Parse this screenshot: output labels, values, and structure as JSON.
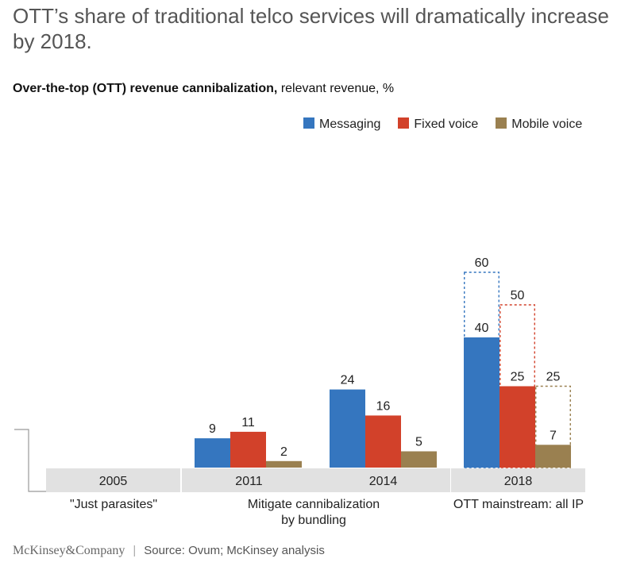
{
  "header": {
    "title": "OTT’s share of traditional telco services will dramatically increase by 2018.",
    "subtitle_bold": "Over-the-top (OTT) revenue cannibalization,",
    "subtitle_rest": " relevant revenue, %"
  },
  "footer": {
    "brand": "McKinsey&Company",
    "source": "Source: Ovum; McKinsey analysis"
  },
  "colors": {
    "messaging": "#3576bf",
    "fixed_voice": "#d2412a",
    "mobile_voice": "#9a8050",
    "category_band": "#e1e1e1",
    "axis": "#999999"
  },
  "chart_data": {
    "type": "bar",
    "title": "OTT’s share of traditional telco services will dramatically increase by 2018.",
    "subtitle": "Over-the-top (OTT) revenue cannibalization, relevant revenue, %",
    "categories": [
      "2005",
      "2011",
      "2014",
      "2018"
    ],
    "phases": [
      "\"Just parasites\"",
      "Mitigate cannibalization by bundling",
      "OTT mainstream: all IP"
    ],
    "phase_lines": [
      [
        "\"Just parasites\""
      ],
      [
        "Mitigate cannibalization",
        "by bundling"
      ],
      [
        "OTT mainstream: all IP"
      ]
    ],
    "ylim": [
      0,
      60
    ],
    "grid": false,
    "legend_position": "top-right",
    "series": [
      {
        "name": "Messaging",
        "color": "#3576bf",
        "values": [
          null,
          9,
          24,
          40
        ],
        "projected_2018": 60
      },
      {
        "name": "Fixed voice",
        "color": "#d2412a",
        "values": [
          null,
          11,
          16,
          25
        ],
        "projected_2018": 50
      },
      {
        "name": "Mobile voice",
        "color": "#9a8050",
        "values": [
          null,
          2,
          5,
          7
        ],
        "projected_2018": 25
      }
    ]
  }
}
